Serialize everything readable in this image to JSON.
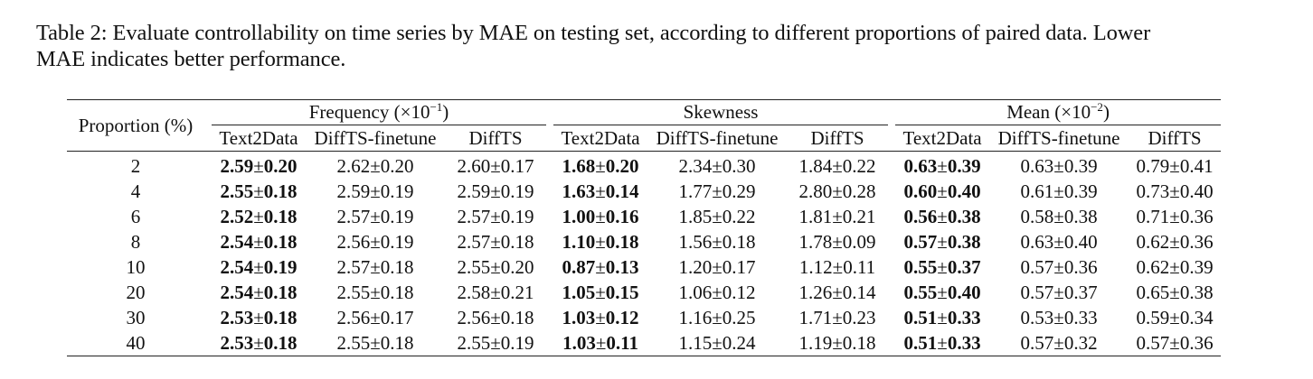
{
  "caption": {
    "line1": "Table 2: Evaluate controllability on time series by MAE on testing set, according to different proportions of paired data. Lower",
    "line2": "MAE indicates better performance."
  },
  "header": {
    "proportion": "Proportion (%)",
    "groups": [
      {
        "name": "Frequency (×10",
        "sup": "−1",
        "close": ")"
      },
      {
        "name": "Skewness",
        "sup": "",
        "close": ""
      },
      {
        "name": "Mean (×10",
        "sup": "−2",
        "close": ")"
      }
    ],
    "methods": [
      "Text2Data",
      "DiffTS-finetune",
      "DiffTS"
    ]
  },
  "pm": "±",
  "rows": [
    {
      "p": "2",
      "cells": [
        [
          "2.59",
          "0.20"
        ],
        [
          "2.62",
          "0.20"
        ],
        [
          "2.60",
          "0.17"
        ],
        [
          "1.68",
          "0.20"
        ],
        [
          "2.34",
          "0.30"
        ],
        [
          "1.84",
          "0.22"
        ],
        [
          "0.63",
          "0.39"
        ],
        [
          "0.63",
          "0.39"
        ],
        [
          "0.79",
          "0.41"
        ]
      ]
    },
    {
      "p": "4",
      "cells": [
        [
          "2.55",
          "0.18"
        ],
        [
          "2.59",
          "0.19"
        ],
        [
          "2.59",
          "0.19"
        ],
        [
          "1.63",
          "0.14"
        ],
        [
          "1.77",
          "0.29"
        ],
        [
          "2.80",
          "0.28"
        ],
        [
          "0.60",
          "0.40"
        ],
        [
          "0.61",
          "0.39"
        ],
        [
          "0.73",
          "0.40"
        ]
      ]
    },
    {
      "p": "6",
      "cells": [
        [
          "2.52",
          "0.18"
        ],
        [
          "2.57",
          "0.19"
        ],
        [
          "2.57",
          "0.19"
        ],
        [
          "1.00",
          "0.16"
        ],
        [
          "1.85",
          "0.22"
        ],
        [
          "1.81",
          "0.21"
        ],
        [
          "0.56",
          "0.38"
        ],
        [
          "0.58",
          "0.38"
        ],
        [
          "0.71",
          "0.36"
        ]
      ]
    },
    {
      "p": "8",
      "cells": [
        [
          "2.54",
          "0.18"
        ],
        [
          "2.56",
          "0.19"
        ],
        [
          "2.57",
          "0.18"
        ],
        [
          "1.10",
          "0.18"
        ],
        [
          "1.56",
          "0.18"
        ],
        [
          "1.78",
          "0.09"
        ],
        [
          "0.57",
          "0.38"
        ],
        [
          "0.63",
          "0.40"
        ],
        [
          "0.62",
          "0.36"
        ]
      ]
    },
    {
      "p": "10",
      "cells": [
        [
          "2.54",
          "0.19"
        ],
        [
          "2.57",
          "0.18"
        ],
        [
          "2.55",
          "0.20"
        ],
        [
          "0.87",
          "0.13"
        ],
        [
          "1.20",
          "0.17"
        ],
        [
          "1.12",
          "0.11"
        ],
        [
          "0.55",
          "0.37"
        ],
        [
          "0.57",
          "0.36"
        ],
        [
          "0.62",
          "0.39"
        ]
      ]
    },
    {
      "p": "20",
      "cells": [
        [
          "2.54",
          "0.18"
        ],
        [
          "2.55",
          "0.18"
        ],
        [
          "2.58",
          "0.21"
        ],
        [
          "1.05",
          "0.15"
        ],
        [
          "1.06",
          "0.12"
        ],
        [
          "1.26",
          "0.14"
        ],
        [
          "0.55",
          "0.40"
        ],
        [
          "0.57",
          "0.37"
        ],
        [
          "0.65",
          "0.38"
        ]
      ]
    },
    {
      "p": "30",
      "cells": [
        [
          "2.53",
          "0.18"
        ],
        [
          "2.56",
          "0.17"
        ],
        [
          "2.56",
          "0.18"
        ],
        [
          "1.03",
          "0.12"
        ],
        [
          "1.16",
          "0.25"
        ],
        [
          "1.71",
          "0.23"
        ],
        [
          "0.51",
          "0.33"
        ],
        [
          "0.53",
          "0.33"
        ],
        [
          "0.59",
          "0.34"
        ]
      ]
    },
    {
      "p": "40",
      "cells": [
        [
          "2.53",
          "0.18"
        ],
        [
          "2.55",
          "0.18"
        ],
        [
          "2.55",
          "0.19"
        ],
        [
          "1.03",
          "0.11"
        ],
        [
          "1.15",
          "0.24"
        ],
        [
          "1.19",
          "0.18"
        ],
        [
          "0.51",
          "0.33"
        ],
        [
          "0.57",
          "0.32"
        ],
        [
          "0.57",
          "0.36"
        ]
      ]
    }
  ],
  "bold_columns": [
    0,
    3,
    6
  ]
}
